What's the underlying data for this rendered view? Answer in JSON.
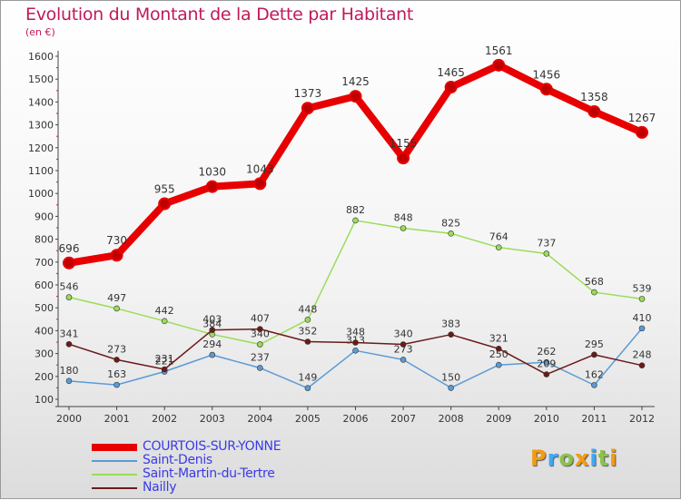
{
  "title": "Evolution du Montant de la Dette par Habitant",
  "unit_label": "(en €)",
  "logo_text": "Proxiti",
  "chart_data": {
    "type": "line",
    "title": "Evolution du Montant de la Dette par Habitant",
    "ylabel": "(en €)",
    "xlabel": "",
    "x": [
      "2000",
      "2001",
      "2002",
      "2003",
      "2004",
      "2005",
      "2006",
      "2007",
      "2008",
      "2009",
      "2010",
      "2011",
      "2012"
    ],
    "ylim": [
      100,
      1600
    ],
    "yticks": [
      100,
      200,
      300,
      400,
      500,
      600,
      700,
      800,
      900,
      1000,
      1100,
      1200,
      1300,
      1400,
      1500,
      1600
    ],
    "grid": false,
    "legend_position": "bottom-left",
    "series": [
      {
        "name": "COURTOIS-SUR-YONNE",
        "color": "#e80000",
        "values": [
          696,
          730,
          955,
          1030,
          1043,
          1373,
          1425,
          1155,
          1465,
          1561,
          1456,
          1358,
          1267
        ]
      },
      {
        "name": "Saint-Denis",
        "color": "#5b9bd5",
        "values": [
          180,
          163,
          221,
          294,
          237,
          149,
          313,
          273,
          150,
          250,
          262,
          162,
          410
        ]
      },
      {
        "name": "Saint-Martin-du-Tertre",
        "color": "#99dd55",
        "values": [
          546,
          497,
          442,
          384,
          340,
          448,
          882,
          848,
          825,
          764,
          737,
          568,
          539
        ]
      },
      {
        "name": "Nailly",
        "color": "#6b1a1a",
        "values": [
          341,
          273,
          231,
          403,
          407,
          352,
          348,
          340,
          383,
          321,
          209,
          295,
          248
        ]
      }
    ]
  }
}
